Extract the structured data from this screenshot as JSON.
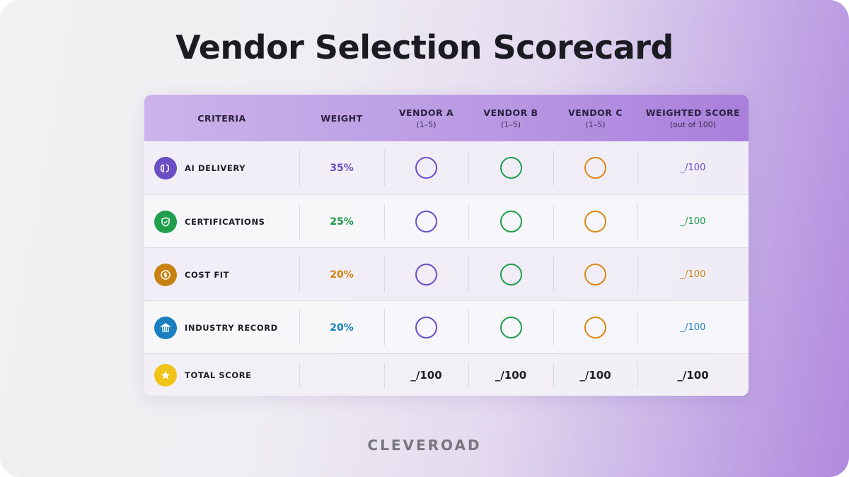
{
  "title": "Vendor Selection Scorecard",
  "table": {
    "columns": [
      {
        "label": "CRITERIA"
      },
      {
        "label": "WEIGHT"
      },
      {
        "label": "VENDOR A",
        "sub": "(1–5)"
      },
      {
        "label": "VENDOR B",
        "sub": "(1–5)"
      },
      {
        "label": "VENDOR C",
        "sub": "(1–5)"
      },
      {
        "label": "WEIGHTED SCORE",
        "sub": "(out of 100)"
      }
    ],
    "rows": [
      {
        "criterion": "AI DELIVERY",
        "weight": "35%",
        "score": "_/100"
      },
      {
        "criterion": "CERTIFICATIONS",
        "weight": "25%",
        "score": "_/100"
      },
      {
        "criterion": "COST FIT",
        "weight": "20%",
        "score": "_/100"
      },
      {
        "criterion": "INDUSTRY RECORD",
        "weight": "20%",
        "score": "_/100"
      }
    ],
    "total": {
      "label": "TOTAL SCORE",
      "scores": [
        "_/100",
        "_/100",
        "_/100",
        "_/100"
      ]
    }
  },
  "footer": "CLEVEROAD"
}
